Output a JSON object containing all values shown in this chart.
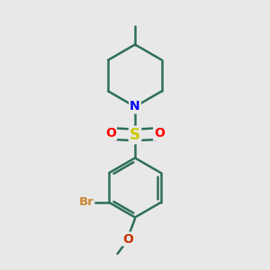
{
  "background_color": "#e8e8e8",
  "bond_color": "#2d6e5a",
  "bond_width": 1.8,
  "N_color": "#0000ff",
  "S_color": "#cccc00",
  "O_color": "#ff0000",
  "Br_color": "#cc8833",
  "O_methoxy_color": "#cc3300",
  "font_size": 10,
  "figsize": [
    3.0,
    3.0
  ],
  "dpi": 100,
  "xlim": [
    0,
    10
  ],
  "ylim": [
    0,
    10
  ]
}
